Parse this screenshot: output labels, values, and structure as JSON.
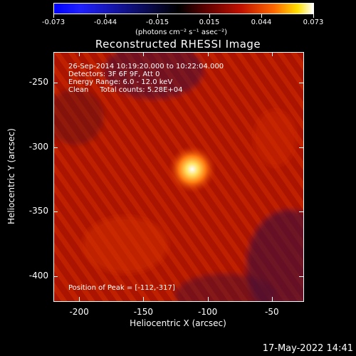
{
  "colorbar": {
    "tick_labels": [
      "-0.073",
      "-0.044",
      "-0.015",
      "0.015",
      "0.044",
      "0.073"
    ],
    "units": "(photons cm⁻² s⁻¹ asec⁻²)"
  },
  "title": "Reconstructed RHESSI Image",
  "annotations": {
    "time_range": "26-Sep-2014 10:19:20.000 to 10:22:04.000",
    "detectors": "Detectors: 3F 6F 9F, Att 0",
    "energy": "Energy Range: 6.0 - 12.0 keV",
    "method": "Clean     Total counts: 5.28E+04",
    "peak": "Position of Peak = [-112,-317]"
  },
  "chart_data": {
    "type": "heatmap",
    "title": "Reconstructed RHESSI Image",
    "xlabel": "Heliocentric X (arcsec)",
    "ylabel": "Heliocentric Y (arcsec)",
    "xlim": [
      -220,
      -25
    ],
    "ylim": [
      -420,
      -226
    ],
    "x_ticks": [
      -200,
      -150,
      -100,
      -50
    ],
    "y_ticks": [
      -250,
      -300,
      -350,
      -400
    ],
    "zlim": [
      -0.073,
      0.073
    ],
    "peak": {
      "x": -112,
      "y": -317
    }
  },
  "axis_labels": {
    "x_ticks": [
      "-200",
      "-150",
      "-100",
      "-50"
    ],
    "y_ticks": [
      "-250",
      "-300",
      "-350",
      "-400"
    ],
    "xlabel": "Heliocentric X (arcsec)",
    "ylabel": "Heliocentric Y (arcsec)"
  },
  "timestamp": "17-May-2022 14:41"
}
